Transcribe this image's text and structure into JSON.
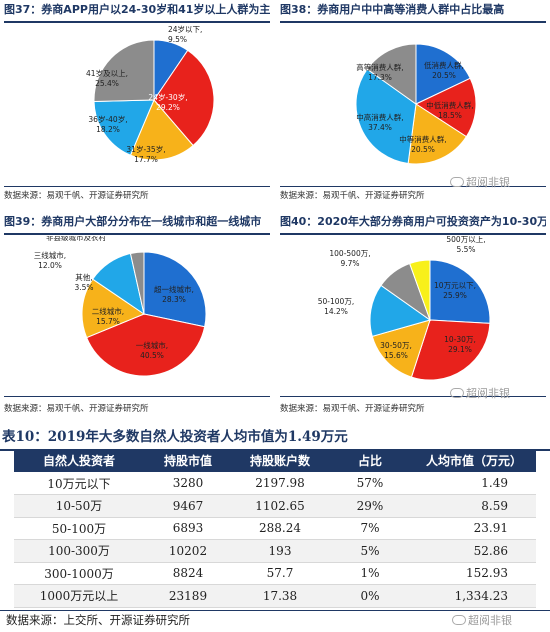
{
  "figures": [
    {
      "title": "图37：券商APP用户以24-30岁和41岁以上人群为主",
      "source": "数据来源：易观千帆、开源证券研究所"
    },
    {
      "title": "图38：券商用户中中高等消费人群中占比最高",
      "source": "数据来源：易观千帆、开源证券研究所"
    },
    {
      "title": "图39：券商用户大部分分布在一线城市和超一线城市",
      "source": "数据来源：易观千帆、开源证券研究所"
    },
    {
      "title": "图40：2020年大部分券商用户可投资资产为10-30万",
      "source": "数据来源：易观千帆、开源证券研究所"
    }
  ],
  "watermark": "超阅非银",
  "colors": {
    "blue": "#1f6fd0",
    "red": "#e8221c",
    "orange": "#f7b21a",
    "sky": "#21a7e8",
    "gray": "#8c8c8c",
    "yellow": "#f8f01a",
    "navy": "#1f3864"
  },
  "chart_data": [
    {
      "type": "pie",
      "title": "图37：券商APP用户以24-30岁和41岁以上人群为主",
      "slices": [
        {
          "label": "24岁以下,",
          "value": 9.5,
          "value_label": "9.5%",
          "color": "#1f6fd0"
        },
        {
          "label": "24岁-30岁,",
          "value": 29.2,
          "value_label": "29.2%",
          "color": "#e8221c"
        },
        {
          "label": "31岁-35岁,",
          "value": 17.7,
          "value_label": "17.7%",
          "color": "#f7b21a"
        },
        {
          "label": "36岁-40岁,",
          "value": 18.2,
          "value_label": "18.2%",
          "color": "#21a7e8"
        },
        {
          "label": "41岁及以上,",
          "value": 25.4,
          "value_label": "25.4%",
          "color": "#8c8c8c"
        }
      ]
    },
    {
      "type": "pie",
      "title": "图38：券商用户中中高等消费人群中占比最高",
      "slices": [
        {
          "label": "低消费人群,",
          "value": 20.5,
          "value_label": "20.5%",
          "color": "#1f6fd0"
        },
        {
          "label": "中低消费人群,",
          "value": 18.5,
          "value_label": "18.5%",
          "color": "#e8221c"
        },
        {
          "label": "中等消费人群,",
          "value": 20.5,
          "value_label": "20.5%",
          "color": "#f7b21a"
        },
        {
          "label": "中高消费人群,",
          "value": 37.4,
          "value_label": "37.4%",
          "color": "#21a7e8"
        },
        {
          "label": "高等消费人群,",
          "value": 17.3,
          "value_label": "17.3%",
          "color": "#8c8c8c"
        }
      ]
    },
    {
      "type": "pie",
      "title": "图39：券商用户大部分分布在一线城市和超一线城市",
      "slices": [
        {
          "label": "超一线城市,",
          "value": 28.3,
          "value_label": "28.3%",
          "color": "#1f6fd0"
        },
        {
          "label": "一线城市,",
          "value": 40.5,
          "value_label": "40.5%",
          "color": "#e8221c"
        },
        {
          "label": "二线城市,",
          "value": 15.7,
          "value_label": "15.7%",
          "color": "#f7b21a"
        },
        {
          "label": "三线城市,",
          "value": 12.0,
          "value_label": "12.0%",
          "color": "#21a7e8"
        },
        {
          "label": "其他,",
          "value": 3.5,
          "value_label": "3.5%",
          "color": "#8c8c8c"
        },
        {
          "label": "非县级城市及农村",
          "value": 0.0,
          "value_label": "",
          "color": "#e8e8e8"
        }
      ]
    },
    {
      "type": "pie",
      "title": "图40：2020年大部分券商用户可投资资产为10-30万",
      "slices": [
        {
          "label": "10万元以下,",
          "value": 25.9,
          "value_label": "25.9%",
          "color": "#1f6fd0"
        },
        {
          "label": "10-30万,",
          "value": 29.1,
          "value_label": "29.1%",
          "color": "#e8221c"
        },
        {
          "label": "30-50万,",
          "value": 15.6,
          "value_label": "15.6%",
          "color": "#f7b21a"
        },
        {
          "label": "50-100万,",
          "value": 14.2,
          "value_label": "14.2%",
          "color": "#21a7e8"
        },
        {
          "label": "100-500万,",
          "value": 9.7,
          "value_label": "9.7%",
          "color": "#8c8c8c"
        },
        {
          "label": "500万以上,",
          "value": 5.5,
          "value_label": "5.5%",
          "color": "#f8f01a"
        }
      ]
    },
    {
      "type": "table",
      "title": "表10：2019年大多数自然人投资者人均市值为1.49万元",
      "columns": [
        "自然人投资者",
        "持股市值",
        "持股账户数",
        "占比",
        "人均市值（万元）"
      ],
      "rows": [
        [
          "10万元以下",
          "3280",
          "2197.98",
          "57%",
          "1.49"
        ],
        [
          "10-50万",
          "9467",
          "1102.65",
          "29%",
          "8.59"
        ],
        [
          "50-100万",
          "6893",
          "288.24",
          "7%",
          "23.91"
        ],
        [
          "100-300万",
          "10202",
          "193",
          "5%",
          "52.86"
        ],
        [
          "300-1000万",
          "8824",
          "57.7",
          "1%",
          "152.93"
        ],
        [
          "1000万元以上",
          "23189",
          "17.38",
          "0%",
          "1,334.23"
        ]
      ],
      "source": "数据来源：上交所、开源证券研究所"
    }
  ]
}
